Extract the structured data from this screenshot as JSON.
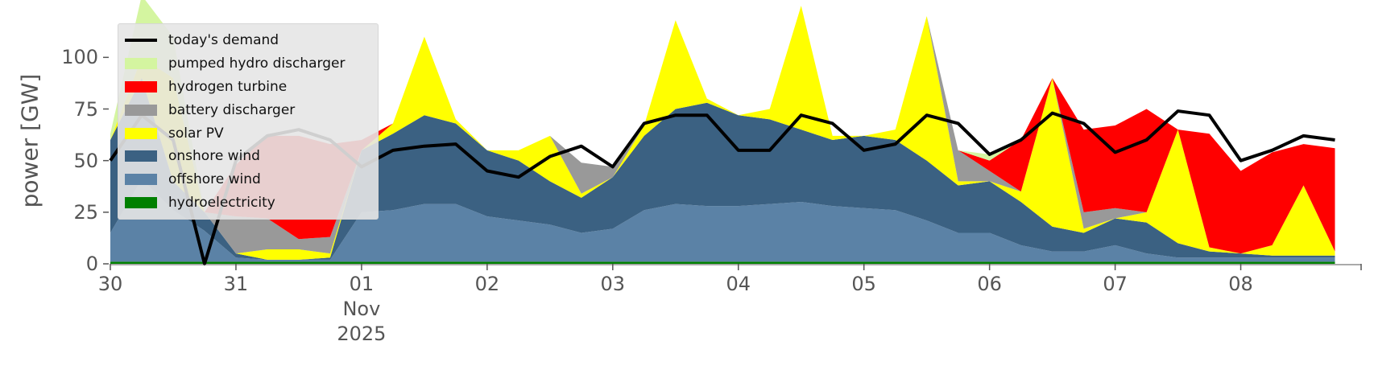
{
  "chart_data": {
    "type": "stacked-area",
    "ylabel": "power [GW]",
    "ylim": [
      0,
      120
    ],
    "yticks": [
      0,
      25,
      50,
      75,
      100
    ],
    "xlim": [
      "2025-10-30T00:00",
      "2025-11-08T23:00"
    ],
    "xticks": [
      {
        "value": "2025-10-30T00:00",
        "label": "30"
      },
      {
        "value": "2025-10-31T00:00",
        "label": "31"
      },
      {
        "value": "2025-11-01T00:00",
        "label": "01\nNov\n2025"
      },
      {
        "value": "2025-11-02T00:00",
        "label": "02"
      },
      {
        "value": "2025-11-03T00:00",
        "label": "03"
      },
      {
        "value": "2025-11-04T00:00",
        "label": "04"
      },
      {
        "value": "2025-11-05T00:00",
        "label": "05"
      },
      {
        "value": "2025-11-06T00:00",
        "label": "06"
      },
      {
        "value": "2025-11-07T00:00",
        "label": "07"
      },
      {
        "value": "2025-11-08T00:00",
        "label": "08"
      }
    ],
    "legend": "upper left",
    "x": [
      "2025-10-30T00:00",
      "2025-10-30T06:00",
      "2025-10-30T12:00",
      "2025-10-30T18:00",
      "2025-10-31T00:00",
      "2025-10-31T06:00",
      "2025-10-31T12:00",
      "2025-10-31T18:00",
      "2025-11-01T00:00",
      "2025-11-01T06:00",
      "2025-11-01T12:00",
      "2025-11-01T18:00",
      "2025-11-02T00:00",
      "2025-11-02T06:00",
      "2025-11-02T12:00",
      "2025-11-02T18:00",
      "2025-11-03T00:00",
      "2025-11-03T06:00",
      "2025-11-03T12:00",
      "2025-11-03T18:00",
      "2025-11-04T00:00",
      "2025-11-04T06:00",
      "2025-11-04T12:00",
      "2025-11-04T18:00",
      "2025-11-05T00:00",
      "2025-11-05T06:00",
      "2025-11-05T12:00",
      "2025-11-05T18:00",
      "2025-11-06T00:00",
      "2025-11-06T06:00",
      "2025-11-06T12:00",
      "2025-11-06T18:00",
      "2025-11-07T00:00",
      "2025-11-07T06:00",
      "2025-11-07T12:00",
      "2025-11-07T18:00",
      "2025-11-08T00:00",
      "2025-11-08T06:00",
      "2025-11-08T12:00",
      "2025-11-08T18:00"
    ],
    "series": [
      {
        "name": "today's demand",
        "type": "line",
        "color": "#000000",
        "values": [
          50,
          72,
          60,
          0,
          50,
          62,
          65,
          60,
          47,
          55,
          57,
          58,
          45,
          42,
          52,
          57,
          47,
          68,
          72,
          72,
          55,
          55,
          72,
          68,
          55,
          58,
          72,
          68,
          53,
          60,
          73,
          68,
          54,
          60,
          74,
          72,
          50,
          55,
          62,
          60
        ]
      },
      {
        "name": "pumped hydro discharger",
        "color": "#d4f5a0",
        "values": [
          3,
          30,
          20,
          0,
          0,
          0,
          0,
          0,
          0,
          0,
          0,
          0,
          0,
          0,
          0,
          0,
          0,
          0,
          0,
          0,
          0,
          0,
          0,
          0,
          0,
          0,
          0,
          0,
          3,
          0,
          0,
          0,
          0,
          0,
          0,
          0,
          0,
          0,
          0,
          0
        ]
      },
      {
        "name": "hydrogen turbine",
        "color": "#ff0000",
        "values": [
          0,
          0,
          0,
          0,
          25,
          40,
          50,
          45,
          5,
          0,
          0,
          0,
          0,
          0,
          0,
          0,
          0,
          0,
          0,
          0,
          0,
          0,
          0,
          0,
          0,
          0,
          0,
          0,
          5,
          25,
          0,
          40,
          40,
          50,
          0,
          55,
          40,
          45,
          20,
          50
        ]
      },
      {
        "name": "battery discharger",
        "color": "#999999",
        "values": [
          0,
          0,
          0,
          0,
          18,
          15,
          5,
          8,
          0,
          0,
          0,
          0,
          0,
          0,
          0,
          15,
          5,
          0,
          0,
          0,
          0,
          0,
          0,
          0,
          0,
          0,
          0,
          15,
          5,
          0,
          0,
          8,
          5,
          0,
          0,
          0,
          0,
          0,
          0,
          0
        ]
      },
      {
        "name": "solar PV",
        "color": "#ffff00",
        "values": [
          0,
          10,
          50,
          0,
          0,
          5,
          5,
          2,
          0,
          5,
          38,
          2,
          0,
          5,
          22,
          2,
          0,
          5,
          43,
          2,
          0,
          5,
          60,
          2,
          0,
          5,
          70,
          2,
          0,
          5,
          72,
          2,
          0,
          5,
          55,
          2,
          0,
          5,
          34,
          2
        ]
      },
      {
        "name": "onshore wind",
        "color": "#3b6182",
        "values": [
          45,
          49,
          14,
          9,
          2,
          0,
          0,
          1,
          30,
          37,
          43,
          39,
          32,
          29,
          21,
          17,
          25,
          36,
          46,
          50,
          44,
          41,
          35,
          32,
          35,
          34,
          29,
          23,
          25,
          21,
          12,
          9,
          13,
          15,
          7,
          3,
          2,
          1,
          1,
          1
        ]
      },
      {
        "name": "offshore wind",
        "color": "#5b82a6",
        "values": [
          14,
          40,
          25,
          15,
          2,
          1,
          1,
          1,
          24,
          25,
          28,
          28,
          22,
          20,
          18,
          14,
          16,
          25,
          28,
          27,
          27,
          28,
          29,
          27,
          26,
          25,
          20,
          14,
          14,
          8,
          5,
          5,
          8,
          4,
          2,
          2,
          2,
          2,
          2,
          2
        ]
      },
      {
        "name": "hydroelectricity",
        "color": "#008000",
        "values": [
          1,
          1,
          1,
          1,
          1,
          1,
          1,
          1,
          1,
          1,
          1,
          1,
          1,
          1,
          1,
          1,
          1,
          1,
          1,
          1,
          1,
          1,
          1,
          1,
          1,
          1,
          1,
          1,
          1,
          1,
          1,
          1,
          1,
          1,
          1,
          1,
          1,
          1,
          1,
          1
        ]
      }
    ]
  }
}
